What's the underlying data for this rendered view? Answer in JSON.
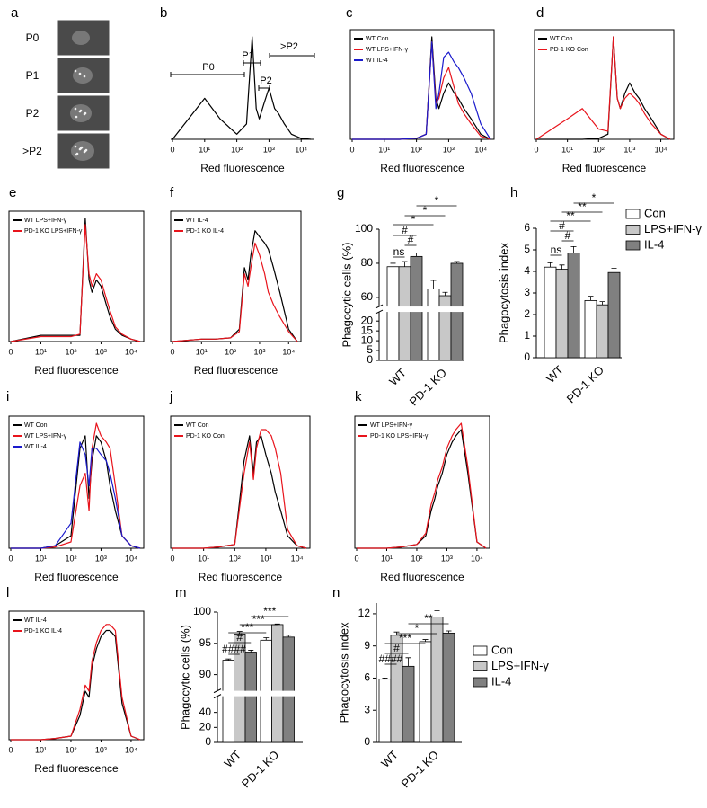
{
  "chart_data": [
    {
      "panel": "a",
      "type": "images",
      "labels": [
        "P0",
        "P1",
        "P2",
        ">P2"
      ]
    },
    {
      "panel": "b",
      "type": "line",
      "xscale": "log",
      "frame": false,
      "xlabel": "Red fluorescence",
      "x": [
        0,
        10,
        30,
        100,
        200,
        300,
        400,
        500,
        700,
        1000,
        1500,
        2000,
        3000,
        5000,
        10000,
        20000
      ],
      "xlim": [
        0,
        20000
      ],
      "ylim": [
        0,
        100
      ],
      "xticks": [
        0,
        {
          "value": 10,
          "label": "10¹"
        },
        {
          "value": 100,
          "label": "10²"
        },
        {
          "value": 1000,
          "label": "10³"
        },
        {
          "value": 10000,
          "label": "10⁴"
        }
      ],
      "series": [
        {
          "color": "#000000",
          "values": [
            0,
            40,
            20,
            5,
            15,
            100,
            30,
            20,
            35,
            50,
            30,
            25,
            15,
            5,
            1,
            0
          ]
        }
      ],
      "annotations": [
        "P0",
        "P1",
        "P2",
        ">P2"
      ]
    },
    {
      "panel": "c",
      "type": "line",
      "xscale": "log",
      "frame": true,
      "xlabel": "Red fluorescence",
      "x": [
        0,
        10,
        30,
        100,
        200,
        300,
        400,
        500,
        700,
        1000,
        1500,
        2000,
        3000,
        5000,
        10000,
        20000
      ],
      "xlim": [
        0,
        20000
      ],
      "ylim": [
        0,
        100
      ],
      "xticks": [
        0,
        {
          "value": 10,
          "label": "10¹"
        },
        {
          "value": 100,
          "label": "10²"
        },
        {
          "value": 1000,
          "label": "10³"
        },
        {
          "value": 10000,
          "label": "10⁴"
        }
      ],
      "series": [
        {
          "name": "WT Con",
          "color": "#000000",
          "values": [
            0,
            0,
            0,
            1,
            5,
            100,
            40,
            30,
            45,
            55,
            45,
            40,
            30,
            20,
            5,
            0
          ]
        },
        {
          "name": "WT LPS+IFN-γ",
          "color": "#e8141c",
          "values": [
            0,
            0,
            0,
            1,
            5,
            95,
            35,
            40,
            60,
            70,
            50,
            35,
            25,
            15,
            3,
            0
          ]
        },
        {
          "name": "WT IL-4",
          "color": "#1a1acc",
          "values": [
            0,
            0,
            0,
            1,
            5,
            95,
            30,
            45,
            80,
            85,
            75,
            70,
            60,
            45,
            15,
            0
          ]
        }
      ]
    },
    {
      "panel": "d",
      "type": "line",
      "xscale": "log",
      "frame": true,
      "xlabel": "Red fluorescence",
      "x": [
        0,
        10,
        30,
        100,
        200,
        300,
        400,
        500,
        700,
        1000,
        1500,
        2000,
        3000,
        5000,
        10000,
        20000
      ],
      "xlim": [
        0,
        20000
      ],
      "ylim": [
        0,
        100
      ],
      "xticks": [
        0,
        {
          "value": 10,
          "label": "10¹"
        },
        {
          "value": 100,
          "label": "10²"
        },
        {
          "value": 1000,
          "label": "10³"
        },
        {
          "value": 10000,
          "label": "10⁴"
        }
      ],
      "series": [
        {
          "name": "WT Con",
          "color": "#000000",
          "values": [
            0,
            0,
            0,
            1,
            5,
            100,
            40,
            30,
            45,
            55,
            45,
            40,
            30,
            20,
            5,
            0
          ]
        },
        {
          "name": "PD-1 KO Con",
          "color": "#e8141c",
          "values": [
            0,
            20,
            30,
            10,
            8,
            100,
            40,
            30,
            40,
            45,
            40,
            35,
            25,
            15,
            5,
            0
          ]
        }
      ]
    },
    {
      "panel": "e",
      "type": "line",
      "xscale": "log",
      "frame": true,
      "xlabel": "Red fluorescence",
      "x": [
        0,
        10,
        30,
        100,
        200,
        300,
        400,
        500,
        700,
        1000,
        1500,
        2000,
        3000,
        5000,
        10000,
        20000
      ],
      "xlim": [
        0,
        20000
      ],
      "ylim": [
        0,
        100
      ],
      "xticks": [
        0,
        {
          "value": 10,
          "label": "10¹"
        },
        {
          "value": 100,
          "label": "10²"
        },
        {
          "value": 1000,
          "label": "10³"
        },
        {
          "value": 10000,
          "label": "10⁴"
        }
      ],
      "series": [
        {
          "name": "WT LPS+IFN-γ",
          "color": "#000000",
          "values": [
            0,
            5,
            5,
            5,
            5,
            100,
            50,
            40,
            50,
            45,
            30,
            20,
            10,
            5,
            2,
            0
          ]
        },
        {
          "name": "PD-1 KO LPS+IFN-γ",
          "color": "#e8141c",
          "values": [
            0,
            4,
            4,
            4,
            6,
            95,
            55,
            45,
            55,
            50,
            35,
            25,
            12,
            6,
            2,
            0
          ]
        }
      ]
    },
    {
      "panel": "f",
      "type": "line",
      "xscale": "log",
      "frame": true,
      "xlabel": "Red fluorescence",
      "x": [
        0,
        10,
        30,
        100,
        200,
        300,
        400,
        500,
        700,
        1000,
        1500,
        2000,
        3000,
        5000,
        10000,
        20000
      ],
      "xlim": [
        0,
        20000
      ],
      "ylim": [
        0,
        100
      ],
      "xticks": [
        0,
        {
          "value": 10,
          "label": "10¹"
        },
        {
          "value": 100,
          "label": "10²"
        },
        {
          "value": 1000,
          "label": "10³"
        },
        {
          "value": 10000,
          "label": "10⁴"
        }
      ],
      "series": [
        {
          "name": "WT IL-4",
          "color": "#000000",
          "values": [
            0,
            2,
            2,
            3,
            10,
            60,
            50,
            70,
            90,
            85,
            80,
            75,
            60,
            40,
            10,
            0
          ]
        },
        {
          "name": "PD-1 KO IL-4",
          "color": "#e8141c",
          "values": [
            0,
            2,
            2,
            3,
            8,
            55,
            45,
            60,
            80,
            70,
            55,
            40,
            30,
            20,
            8,
            0
          ]
        }
      ]
    },
    {
      "panel": "g",
      "type": "bar",
      "categories": [
        "WT",
        "PD-1 KO"
      ],
      "ylabel": "Phagocytic cells (%)",
      "ylim": [
        0,
        100
      ],
      "ybreak": [
        20,
        60
      ],
      "yticks": [
        0,
        5,
        10,
        15,
        20,
        60,
        80,
        100
      ],
      "series": [
        {
          "color": "#ffffff",
          "values": [
            78,
            65
          ],
          "errors": [
            2,
            5
          ]
        },
        {
          "color": "#c8c8c8",
          "values": [
            78,
            61
          ],
          "errors": [
            3,
            2
          ]
        },
        {
          "color": "#808080",
          "values": [
            84,
            80
          ],
          "errors": [
            2,
            1
          ]
        }
      ],
      "annotations": [
        "*",
        "*",
        "*",
        "#",
        "#",
        "ns"
      ]
    },
    {
      "panel": "h",
      "type": "bar",
      "categories": [
        "WT",
        "PD-1 KO"
      ],
      "ylabel": "Phagocytosis index",
      "ylim": [
        0,
        6
      ],
      "yticks": [
        0,
        1,
        2,
        3,
        4,
        5,
        6
      ],
      "legend": "right",
      "series": [
        {
          "name": "Con",
          "color": "#ffffff",
          "values": [
            4.2,
            2.65
          ],
          "errors": [
            0.2,
            0.2
          ]
        },
        {
          "name": "LPS+IFN-γ",
          "color": "#c8c8c8",
          "values": [
            4.1,
            2.45
          ],
          "errors": [
            0.2,
            0.15
          ]
        },
        {
          "name": "IL-4",
          "color": "#808080",
          "values": [
            4.85,
            3.95
          ],
          "errors": [
            0.3,
            0.2
          ]
        }
      ],
      "annotations": [
        "*",
        "**",
        "**",
        "#",
        "#",
        "ns"
      ]
    },
    {
      "panel": "i",
      "type": "line",
      "xscale": "log",
      "frame": true,
      "xlabel": "Red fluorescence",
      "x": [
        0,
        10,
        30,
        100,
        200,
        300,
        400,
        500,
        700,
        1000,
        1500,
        2000,
        3000,
        5000,
        10000,
        20000
      ],
      "xlim": [
        0,
        20000
      ],
      "ylim": [
        0,
        100
      ],
      "xticks": [
        0,
        {
          "value": 10,
          "label": "10¹"
        },
        {
          "value": 100,
          "label": "10²"
        },
        {
          "value": 1000,
          "label": "10³"
        },
        {
          "value": 10000,
          "label": "10⁴"
        }
      ],
      "series": [
        {
          "name": "WT Con",
          "color": "#000000",
          "values": [
            0,
            0,
            2,
            10,
            80,
            90,
            40,
            70,
            90,
            85,
            70,
            50,
            30,
            10,
            2,
            0
          ]
        },
        {
          "name": "WT LPS+IFN-γ",
          "color": "#e8141c",
          "values": [
            0,
            0,
            1,
            5,
            50,
            60,
            30,
            80,
            100,
            90,
            85,
            80,
            50,
            10,
            2,
            0
          ]
        },
        {
          "name": "WT IL-4",
          "color": "#1a1acc",
          "values": [
            0,
            0,
            2,
            20,
            85,
            75,
            50,
            80,
            80,
            75,
            70,
            60,
            40,
            10,
            2,
            0
          ]
        }
      ]
    },
    {
      "panel": "j",
      "type": "line",
      "xscale": "log",
      "frame": true,
      "xlabel": "Red fluorescence",
      "x": [
        0,
        10,
        30,
        100,
        200,
        300,
        400,
        500,
        700,
        1000,
        1500,
        2000,
        3000,
        5000,
        10000,
        20000
      ],
      "xlim": [
        0,
        20000
      ],
      "ylim": [
        0,
        100
      ],
      "xticks": [
        0,
        {
          "value": 10,
          "label": "10¹"
        },
        {
          "value": 100,
          "label": "10²"
        },
        {
          "value": 1000,
          "label": "10³"
        },
        {
          "value": 10000,
          "label": "10⁴"
        }
      ],
      "series": [
        {
          "name": "WT Con",
          "color": "#000000",
          "values": [
            0,
            0,
            1,
            3,
            70,
            90,
            60,
            85,
            90,
            75,
            60,
            45,
            30,
            10,
            2,
            0
          ]
        },
        {
          "name": "PD-1 KO Con",
          "color": "#e8141c",
          "values": [
            0,
            0,
            1,
            3,
            60,
            85,
            55,
            80,
            95,
            95,
            90,
            80,
            60,
            15,
            2,
            0
          ]
        }
      ]
    },
    {
      "panel": "k",
      "type": "line",
      "xscale": "log",
      "frame": true,
      "xlabel": "Red fluorescence",
      "x": [
        0,
        10,
        30,
        100,
        200,
        300,
        400,
        500,
        700,
        1000,
        1500,
        2000,
        3000,
        5000,
        10000,
        20000
      ],
      "xlim": [
        0,
        20000
      ],
      "ylim": [
        0,
        100
      ],
      "xticks": [
        0,
        {
          "value": 10,
          "label": "10¹"
        },
        {
          "value": 100,
          "label": "10²"
        },
        {
          "value": 1000,
          "label": "10³"
        },
        {
          "value": 10000,
          "label": "10⁴"
        }
      ],
      "series": [
        {
          "name": "WT LPS+IFN-γ",
          "color": "#000000",
          "values": [
            0,
            0,
            1,
            3,
            10,
            30,
            40,
            50,
            60,
            75,
            85,
            90,
            95,
            60,
            5,
            0
          ]
        },
        {
          "name": "PD-1 KO LPS+IFN-γ",
          "color": "#e8141c",
          "values": [
            0,
            0,
            1,
            3,
            12,
            35,
            45,
            55,
            65,
            80,
            90,
            95,
            100,
            65,
            5,
            0
          ]
        }
      ]
    },
    {
      "panel": "l",
      "type": "line",
      "xscale": "log",
      "frame": true,
      "xlabel": "Red fluorescence",
      "x": [
        0,
        10,
        30,
        100,
        200,
        300,
        400,
        500,
        700,
        1000,
        1500,
        2000,
        3000,
        5000,
        10000,
        20000
      ],
      "xlim": [
        0,
        20000
      ],
      "ylim": [
        0,
        100
      ],
      "xticks": [
        0,
        {
          "value": 10,
          "label": "10¹"
        },
        {
          "value": 100,
          "label": "10²"
        },
        {
          "value": 1000,
          "label": "10³"
        },
        {
          "value": 10000,
          "label": "10⁴"
        }
      ],
      "series": [
        {
          "name": "WT IL-4",
          "color": "#000000",
          "values": [
            0,
            0,
            1,
            3,
            20,
            40,
            35,
            60,
            75,
            85,
            90,
            90,
            85,
            30,
            3,
            0
          ]
        },
        {
          "name": "PD-1 KO IL-4",
          "color": "#e8141c",
          "values": [
            0,
            0,
            1,
            3,
            25,
            45,
            40,
            65,
            80,
            90,
            95,
            95,
            90,
            35,
            3,
            0
          ]
        }
      ]
    },
    {
      "panel": "m",
      "type": "bar",
      "categories": [
        "WT",
        "PD-1 KO"
      ],
      "ylabel": "Phagocytic cells (%)",
      "ylim": [
        0,
        100
      ],
      "ybreak": [
        40,
        90
      ],
      "yticks": [
        0,
        20,
        40,
        90,
        95,
        100
      ],
      "series": [
        {
          "color": "#ffffff",
          "values": [
            92.3,
            95.5
          ],
          "errors": [
            0.2,
            0.4
          ]
        },
        {
          "color": "#c8c8c8",
          "values": [
            96.5,
            98.0
          ],
          "errors": [
            0.4,
            0.1
          ]
        },
        {
          "color": "#808080",
          "values": [
            93.6,
            96.0
          ],
          "errors": [
            0.3,
            0.3
          ]
        }
      ],
      "annotations": [
        "***",
        "***",
        "***",
        "#",
        "####"
      ]
    },
    {
      "panel": "n",
      "type": "bar",
      "categories": [
        "WT",
        "PD-1 KO"
      ],
      "ylabel": "Phagocytosis index",
      "ylim": [
        0,
        13
      ],
      "yticks": [
        0,
        3,
        6,
        9,
        12
      ],
      "legend": "right",
      "series": [
        {
          "name": "Con",
          "color": "#ffffff",
          "values": [
            5.9,
            9.4
          ],
          "errors": [
            0.1,
            0.2
          ]
        },
        {
          "name": "LPS+IFN-γ",
          "color": "#c8c8c8",
          "values": [
            10.0,
            11.7
          ],
          "errors": [
            0.3,
            0.6
          ]
        },
        {
          "name": "IL-4",
          "color": "#808080",
          "values": [
            7.1,
            10.2
          ],
          "errors": [
            0.8,
            0.2
          ]
        }
      ],
      "annotations": [
        "**",
        "*",
        "***",
        "#",
        "####"
      ]
    }
  ]
}
